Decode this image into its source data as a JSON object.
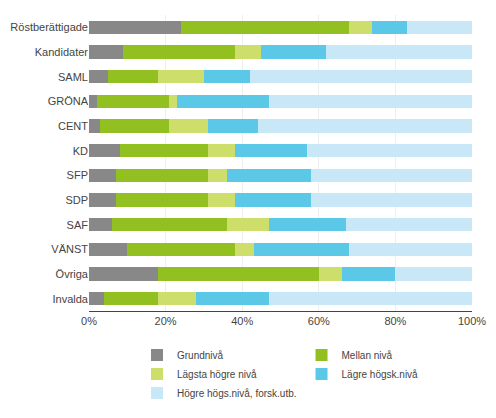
{
  "chart_data": {
    "type": "bar",
    "orientation": "horizontal",
    "stacked": true,
    "categories": [
      "Röstberättigade",
      "Kandidater",
      "SAML",
      "GRÖNA",
      "CENT",
      "KD",
      "SFP",
      "SDP",
      "SAF",
      "VÄNST",
      "Övriga",
      "Invalda"
    ],
    "series": [
      {
        "name": "Grundnivå",
        "color": "#888888",
        "values": [
          24,
          9,
          5,
          2,
          3,
          8,
          7,
          7,
          6,
          10,
          18,
          4
        ]
      },
      {
        "name": "Mellan nivå",
        "color": "#92C021",
        "values": [
          44,
          29,
          13,
          19,
          18,
          23,
          24,
          24,
          30,
          28,
          42,
          14
        ]
      },
      {
        "name": "Lägsta högre nivå",
        "color": "#CEDE6A",
        "values": [
          6,
          7,
          12,
          2,
          10,
          7,
          5,
          7,
          11,
          5,
          6,
          10
        ]
      },
      {
        "name": "Lägre högsk.nivå",
        "color": "#5BC8E8",
        "values": [
          9,
          17,
          12,
          24,
          13,
          19,
          22,
          20,
          20,
          25,
          14,
          19
        ]
      },
      {
        "name": "Högre högs.nivå, forsk.utb.",
        "color": "#C8E8F8",
        "values": [
          17,
          38,
          58,
          53,
          56,
          43,
          42,
          42,
          33,
          32,
          20,
          53
        ]
      }
    ],
    "xlim": [
      0,
      100
    ],
    "xticks": [
      {
        "value": 0,
        "label": "0%"
      },
      {
        "value": 20,
        "label": "20%"
      },
      {
        "value": 40,
        "label": "40%"
      },
      {
        "value": 60,
        "label": "60%"
      },
      {
        "value": 80,
        "label": "80%"
      },
      {
        "value": 100,
        "label": "100%"
      }
    ],
    "grid": true,
    "legend": "bottom"
  }
}
